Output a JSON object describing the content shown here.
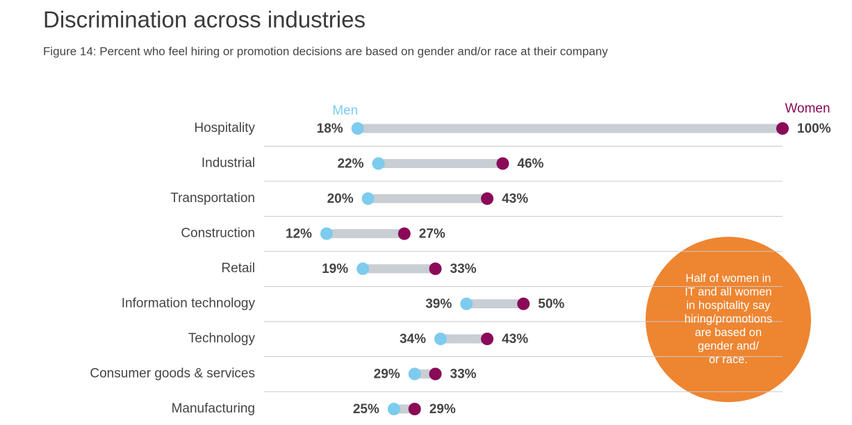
{
  "chart_data": {
    "type": "dumbbell",
    "title": "Discrimination across industries",
    "subtitle": "Figure 14: Percent who feel hiring or promotion decisions are based on gender and/or race at their company",
    "categories": [
      "Hospitality",
      "Industrial",
      "Transportation",
      "Construction",
      "Retail",
      "Information technology",
      "Technology",
      "Consumer goods & services",
      "Manufacturing"
    ],
    "series": [
      {
        "name": "Men",
        "color": "#7dcbee",
        "values": [
          18,
          22,
          20,
          12,
          19,
          39,
          34,
          29,
          25
        ],
        "value_labels": [
          "18%",
          "22%",
          "20%",
          "12%",
          "19%",
          "39%",
          "34%",
          "29%",
          "25%"
        ]
      },
      {
        "name": "Women",
        "color": "#8a0a57",
        "values": [
          100,
          46,
          43,
          27,
          33,
          50,
          43,
          33,
          29
        ],
        "value_labels": [
          "100%",
          "46%",
          "43%",
          "27%",
          "33%",
          "50%",
          "43%",
          "33%",
          "29%"
        ]
      }
    ],
    "xlim": [
      0,
      100
    ],
    "bar_color": "#c8ced3",
    "annotation": [
      "Half of women in",
      "IT and all women",
      "in hospitality say",
      "hiring/promotions",
      "are based on",
      "gender and/",
      "or race."
    ],
    "annotation_color": "#ee8531"
  }
}
